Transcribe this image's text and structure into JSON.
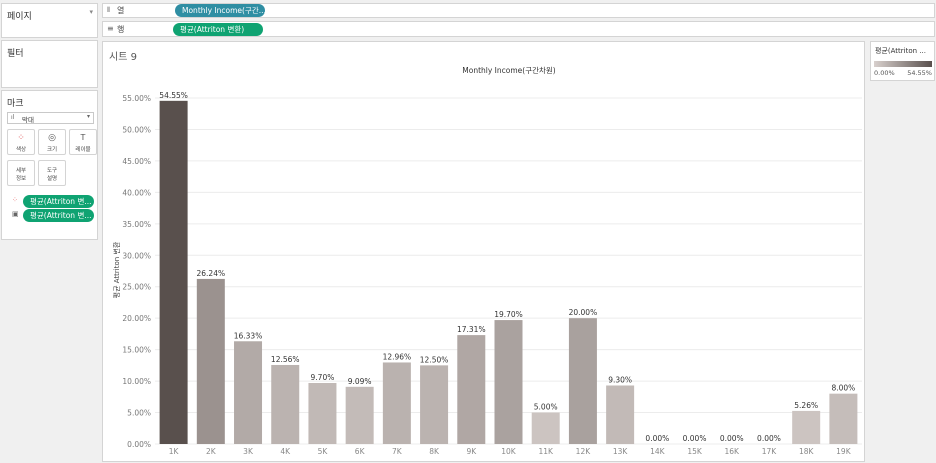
{
  "pages_panel": {
    "title": "페이지"
  },
  "columns_shelf": {
    "label": "열",
    "pill": "Monthly Income(구간..."
  },
  "rows_shelf": {
    "label": "행",
    "pill": "평균(Attriton 변환)"
  },
  "filters_panel": {
    "title": "필터"
  },
  "marks_panel": {
    "title": "마크",
    "mark_type": "막대",
    "buttons": {
      "color": "색상",
      "size": "크기",
      "label": "레이블",
      "detail": "세부\n정보",
      "tooltip": "도구\n설명"
    },
    "pills": [
      "평균(Attriton 변...",
      "평균(Attriton 변..."
    ],
    "icons": [
      "bar-chart-icon",
      "dropdown-arrow-icon",
      "color-dots-icon",
      "size-circles-icon",
      "text-t-icon",
      "detail-dots-icon",
      "tooltip-bubble-icon",
      "color-mark-icon",
      "label-mark-icon"
    ]
  },
  "sheet": {
    "title": "시트 9",
    "column_header": "Monthly Income(구간차원)"
  },
  "legend": {
    "title": "평균(Attriton ...",
    "min_label": "0.00%",
    "max_label": "54.55%",
    "color_low": "#d8d0cd",
    "color_high": "#59504d"
  },
  "chart_data": {
    "type": "bar",
    "title": "시트 9",
    "xlabel": "Monthly Income(구간차원)",
    "ylabel": "평균 Attriton 변환",
    "categories": [
      "1K",
      "2K",
      "3K",
      "4K",
      "5K",
      "6K",
      "7K",
      "8K",
      "9K",
      "10K",
      "11K",
      "12K",
      "13K",
      "14K",
      "15K",
      "16K",
      "17K",
      "18K",
      "19K"
    ],
    "values": [
      54.55,
      26.24,
      16.33,
      12.56,
      9.7,
      9.09,
      12.96,
      12.5,
      17.31,
      19.7,
      5.0,
      20.0,
      9.3,
      0.0,
      0.0,
      0.0,
      0.0,
      5.26,
      8.0
    ],
    "data_labels": [
      "54.55%",
      "26.24%",
      "16.33%",
      "12.56%",
      "9.70%",
      "9.09%",
      "12.96%",
      "12.50%",
      "17.31%",
      "19.70%",
      "5.00%",
      "20.00%",
      "9.30%",
      "0.00%",
      "0.00%",
      "0.00%",
      "0.00%",
      "5.26%",
      "8.00%"
    ],
    "yticks": [
      "0.00%",
      "5.00%",
      "10.00%",
      "15.00%",
      "20.00%",
      "25.00%",
      "30.00%",
      "35.00%",
      "40.00%",
      "45.00%",
      "50.00%",
      "55.00%"
    ],
    "ylim": [
      0,
      55
    ],
    "grid": true,
    "legend_position": "right"
  }
}
